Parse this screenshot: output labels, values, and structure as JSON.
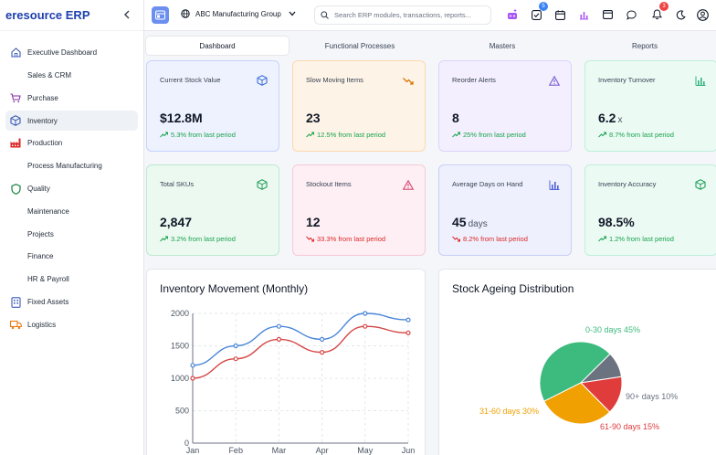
{
  "app": {
    "brand": "eresource ERP"
  },
  "sidebar": {
    "items": [
      {
        "label": "Executive Dashboard",
        "icon": "home-icon",
        "active": false
      },
      {
        "label": "Sales & CRM",
        "icon": "",
        "active": false
      },
      {
        "label": "Purchase",
        "icon": "cart-icon",
        "active": false
      },
      {
        "label": "Inventory",
        "icon": "cube-icon",
        "active": true
      },
      {
        "label": "Production",
        "icon": "factory-icon",
        "active": false
      },
      {
        "label": "Process Manufacturing",
        "icon": "",
        "active": false
      },
      {
        "label": "Quality",
        "icon": "shield-icon",
        "active": false
      },
      {
        "label": "Maintenance",
        "icon": "",
        "active": false
      },
      {
        "label": "Projects",
        "icon": "",
        "active": false
      },
      {
        "label": "Finance",
        "icon": "",
        "active": false
      },
      {
        "label": "HR & Payroll",
        "icon": "",
        "active": false
      },
      {
        "label": "Fixed Assets",
        "icon": "building-icon",
        "active": false
      },
      {
        "label": "Logistics",
        "icon": "truck-icon",
        "active": false
      }
    ]
  },
  "topbar": {
    "company": "ABC Manufacturing Group",
    "search_placeholder": "Search ERP modules, transactions, reports...",
    "tasks_badge": "5",
    "notifications_badge": "3"
  },
  "tabs": [
    "Dashboard",
    "Functional Processes",
    "Masters",
    "Reports"
  ],
  "kpis": [
    {
      "title": "Current Stock Value",
      "value": "$12.8M",
      "unit": "",
      "trend": "5.3% from last period",
      "direction": "up",
      "bg": "#eef2fe",
      "border": "#c7d2fe",
      "icon": "cube-icon",
      "icon_color": "#3b6fd8"
    },
    {
      "title": "Slow Moving Items",
      "value": "23",
      "unit": "",
      "trend": "12.5% from last period",
      "direction": "up",
      "bg": "#fdf3e7",
      "border": "#fcd9b0",
      "icon": "trend-down-icon",
      "icon_color": "#d97706"
    },
    {
      "title": "Reorder Alerts",
      "value": "8",
      "unit": "",
      "trend": "25% from last period",
      "direction": "up",
      "bg": "#f3effe",
      "border": "#ddd3fb",
      "icon": "warning-icon",
      "icon_color": "#7c5cd6"
    },
    {
      "title": "Inventory Turnover",
      "value": "6.2",
      "unit": "x",
      "trend": "8.7% from last period",
      "direction": "up",
      "bg": "#ecfaf4",
      "border": "#bfeedd",
      "icon": "bar-chart-icon",
      "icon_color": "#34b37f"
    },
    {
      "title": "Total SKUs",
      "value": "2,847",
      "unit": "",
      "trend": "3.2% from last period",
      "direction": "up",
      "bg": "#ecf9f1",
      "border": "#bde9cf",
      "icon": "cube-icon",
      "icon_color": "#22a05b"
    },
    {
      "title": "Stockout Items",
      "value": "12",
      "unit": "",
      "trend": "33.3% from last period",
      "direction": "down",
      "bg": "#fdeff4",
      "border": "#f8c9d8",
      "icon": "warning-icon",
      "icon_color": "#d6466f"
    },
    {
      "title": "Average Days on Hand",
      "value": "45",
      "unit": "days",
      "trend": "8.2% from last period",
      "direction": "down",
      "bg": "#eef0fd",
      "border": "#c9cff6",
      "icon": "bar-chart-icon",
      "icon_color": "#4f5fd6"
    },
    {
      "title": "Inventory Accuracy",
      "value": "98.5%",
      "unit": "",
      "trend": "1.2% from last period",
      "direction": "up",
      "bg": "#ecfaf4",
      "border": "#bfeedd",
      "icon": "cube-icon",
      "icon_color": "#22a05b"
    }
  ],
  "charts": {
    "movement_title": "Inventory Movement (Monthly)",
    "ageing_title": "Stock Ageing Distribution"
  },
  "chart_data": [
    {
      "type": "line",
      "title": "Inventory Movement (Monthly)",
      "categories": [
        "Jan",
        "Feb",
        "Mar",
        "Apr",
        "May",
        "Jun"
      ],
      "series": [
        {
          "values": [
            1200,
            1500,
            1800,
            1600,
            2000,
            1900
          ],
          "color": "#4a86d8"
        },
        {
          "values": [
            1000,
            1300,
            1600,
            1400,
            1800,
            1700
          ],
          "color": "#d64545"
        }
      ],
      "yticks": [
        0,
        500,
        1000,
        1500,
        2000
      ],
      "ylim": [
        0,
        2000
      ],
      "grid": true
    },
    {
      "type": "pie",
      "title": "Stock Ageing Distribution",
      "slices": [
        {
          "label": "0-30 days 45%",
          "value": 45,
          "color": "#3dba7e"
        },
        {
          "label": "90+ days 10%",
          "value": 10,
          "color": "#6b7280"
        },
        {
          "label": "61-90 days 15%",
          "value": 15,
          "color": "#e03c3c"
        },
        {
          "label": "31-60 days 30%",
          "value": 30,
          "color": "#f0a000"
        }
      ]
    }
  ]
}
